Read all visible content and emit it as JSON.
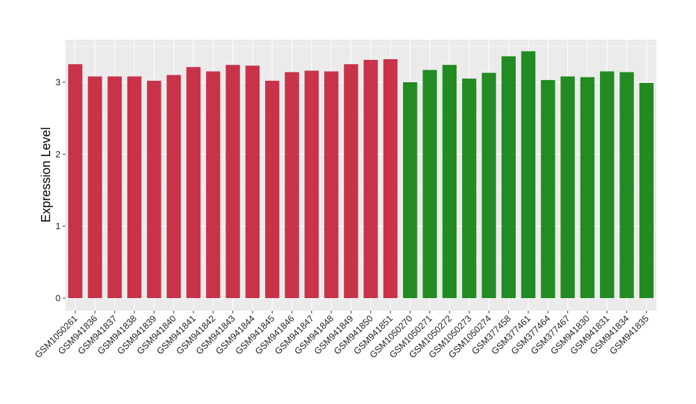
{
  "chart_data": {
    "type": "bar",
    "ylabel": "Expression Level",
    "xlabel": "",
    "ylim": [
      -0.12,
      3.6
    ],
    "yticks": [
      0,
      1,
      2,
      3
    ],
    "grid": true,
    "panel_background": "#ebebeb",
    "gridline_color": "#ffffff",
    "categories": [
      "GSM1050261",
      "GSM941836",
      "GSM941837",
      "GSM941838",
      "GSM941839",
      "GSM941840",
      "GSM941841",
      "GSM941842",
      "GSM941843",
      "GSM941844",
      "GSM941845",
      "GSM941846",
      "GSM941847",
      "GSM941848",
      "GSM941849",
      "GSM941850",
      "GSM941851",
      "GSM1050270",
      "GSM1050271",
      "GSM1050272",
      "GSM1050273",
      "GSM1050274",
      "GSM377458",
      "GSM377461",
      "GSM377464",
      "GSM377467",
      "GSM941830",
      "GSM941831",
      "GSM941834",
      "GSM941835"
    ],
    "values": [
      3.25,
      3.08,
      3.08,
      3.08,
      3.02,
      3.1,
      3.21,
      3.15,
      3.24,
      3.23,
      3.02,
      3.14,
      3.16,
      3.15,
      3.25,
      3.31,
      3.32,
      3.0,
      3.17,
      3.24,
      3.05,
      3.13,
      3.36,
      3.43,
      3.03,
      3.08,
      3.07,
      3.15,
      3.14,
      2.99
    ],
    "groups": [
      {
        "color": "#c8334a",
        "count": 17
      },
      {
        "color": "#228b22",
        "count": 13
      }
    ]
  }
}
